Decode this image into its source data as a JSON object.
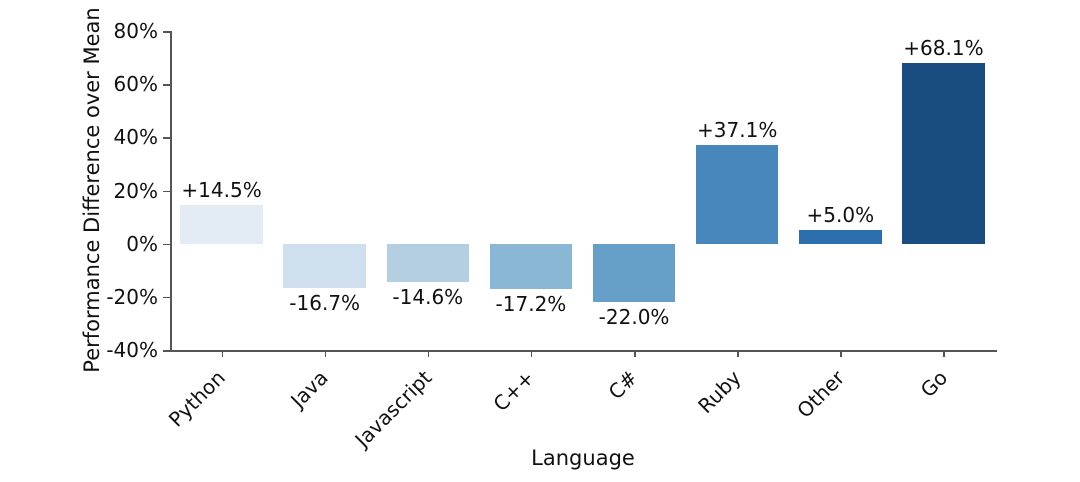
{
  "chart_data": {
    "type": "bar",
    "title": "",
    "xlabel": "Language",
    "ylabel": "Performance Difference over Mean",
    "categories": [
      "Python",
      "Java",
      "Javascript",
      "C++",
      "C#",
      "Ruby",
      "Other",
      "Go"
    ],
    "values": [
      14.5,
      -16.7,
      -14.6,
      -17.2,
      -22.0,
      37.1,
      5.0,
      68.1
    ],
    "bar_value_labels": [
      "+14.5%",
      "-16.7%",
      "-14.6%",
      "-17.2%",
      "-22.0%",
      "+37.1%",
      "+5.0%",
      "+68.1%"
    ],
    "bar_colors": [
      "#e3ecf5",
      "#cfdfed",
      "#b4cee2",
      "#8bb7d7",
      "#66a0c8",
      "#4787bc",
      "#2d6fae",
      "#194c81"
    ],
    "ylim": [
      -40,
      80
    ],
    "yticks": [
      80,
      60,
      40,
      20,
      0,
      -20,
      -40
    ],
    "ytick_labels": [
      "80%",
      "60%",
      "40%",
      "20%",
      "0%",
      "-20%",
      "-40%"
    ],
    "xtick_rotation_degrees": 45,
    "grid": false,
    "legend": null,
    "background_color": "#ffffff",
    "axis_color": "#555555",
    "text_color": "#111111"
  }
}
